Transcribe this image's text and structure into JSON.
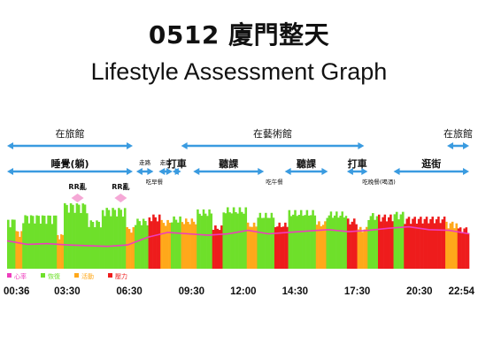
{
  "title_line1": "0512 廈門整天",
  "title_line2": "Lifestyle Assessment Graph",
  "colors": {
    "arrow": "#3a9be0",
    "recovery": "#6ee02a",
    "activity": "#ffa81a",
    "stress": "#ee1c1c",
    "heart_rate": "#ee3dbd",
    "rr_icon": "#f5a8d6"
  },
  "locations": [
    {
      "label": "在旅館",
      "from": "00:36",
      "to": "06:40"
    },
    {
      "label": "在藝術館",
      "from": "09:00",
      "to": "17:50"
    },
    {
      "label": "在旅館",
      "from": "21:50",
      "to": "22:54"
    }
  ],
  "activities": [
    {
      "label": "睡覺(躺)",
      "from": "00:36",
      "to": "06:40",
      "size": "big"
    },
    {
      "label": "走路",
      "from": "06:50",
      "to": "07:40",
      "size": "small"
    },
    {
      "label": "走路",
      "from": "07:55",
      "to": "08:35",
      "size": "small"
    },
    {
      "label": "打車",
      "from": "08:35",
      "to": "09:00",
      "size": "big"
    },
    {
      "label": "聽課",
      "from": "09:35",
      "to": "13:00",
      "size": "big"
    },
    {
      "label": "聽課",
      "from": "14:00",
      "to": "16:05",
      "size": "big"
    },
    {
      "label": "打車",
      "from": "17:00",
      "to": "18:00",
      "size": "big"
    },
    {
      "label": "逛街",
      "from": "19:15",
      "to": "22:54",
      "size": "big"
    }
  ],
  "meal_notes": [
    {
      "label": "吃早餐",
      "from": "07:05",
      "to": "08:20"
    },
    {
      "label": "吃午餐",
      "from": "13:05",
      "to": "13:55"
    },
    {
      "label": "吃晚餐(喝酒)",
      "from": "18:05",
      "to": "19:00"
    }
  ],
  "rr_markers": [
    {
      "label": "RR亂",
      "at": "04:00"
    },
    {
      "label": "RR亂",
      "at": "06:05"
    }
  ],
  "legend": [
    {
      "label": "心率",
      "color_key": "heart_rate"
    },
    {
      "label": "恢復",
      "color_key": "recovery"
    },
    {
      "label": "活動",
      "color_key": "activity"
    },
    {
      "label": "壓力",
      "color_key": "stress"
    }
  ],
  "chart_data": {
    "type": "bar",
    "x_start": "00:36",
    "x_end": "22:54",
    "x_ticks": [
      "00:36",
      "03:30",
      "06:30",
      "09:30",
      "12:00",
      "14:30",
      "17:30",
      "20:30",
      "22:54"
    ],
    "segments": [
      {
        "from": "00:36",
        "to": "01:00",
        "state": "recovery",
        "level": 0.72
      },
      {
        "from": "01:00",
        "to": "01:20",
        "state": "activity",
        "level": 0.55
      },
      {
        "from": "01:20",
        "to": "03:00",
        "state": "recovery",
        "level": 0.78
      },
      {
        "from": "03:00",
        "to": "03:20",
        "state": "activity",
        "level": 0.5
      },
      {
        "from": "03:20",
        "to": "04:30",
        "state": "recovery",
        "level": 0.95
      },
      {
        "from": "04:30",
        "to": "05:10",
        "state": "recovery",
        "level": 0.7
      },
      {
        "from": "05:10",
        "to": "06:20",
        "state": "recovery",
        "level": 0.88
      },
      {
        "from": "06:20",
        "to": "06:45",
        "state": "activity",
        "level": 0.6
      },
      {
        "from": "06:45",
        "to": "07:25",
        "state": "recovery",
        "level": 0.72
      },
      {
        "from": "07:25",
        "to": "08:00",
        "state": "stress",
        "level": 0.78
      },
      {
        "from": "08:00",
        "to": "08:30",
        "state": "activity",
        "level": 0.7
      },
      {
        "from": "08:30",
        "to": "09:00",
        "state": "recovery",
        "level": 0.75
      },
      {
        "from": "09:00",
        "to": "09:45",
        "state": "activity",
        "level": 0.72
      },
      {
        "from": "09:45",
        "to": "10:30",
        "state": "recovery",
        "level": 0.85
      },
      {
        "from": "10:30",
        "to": "11:00",
        "state": "stress",
        "level": 0.62
      },
      {
        "from": "11:00",
        "to": "12:10",
        "state": "recovery",
        "level": 0.88
      },
      {
        "from": "12:10",
        "to": "12:40",
        "state": "activity",
        "level": 0.66
      },
      {
        "from": "12:40",
        "to": "13:30",
        "state": "recovery",
        "level": 0.8
      },
      {
        "from": "13:30",
        "to": "14:10",
        "state": "stress",
        "level": 0.66
      },
      {
        "from": "14:10",
        "to": "15:30",
        "state": "recovery",
        "level": 0.84
      },
      {
        "from": "15:30",
        "to": "16:00",
        "state": "activity",
        "level": 0.68
      },
      {
        "from": "16:00",
        "to": "17:00",
        "state": "recovery",
        "level": 0.82
      },
      {
        "from": "17:00",
        "to": "17:30",
        "state": "stress",
        "level": 0.72
      },
      {
        "from": "17:30",
        "to": "18:00",
        "state": "activity",
        "level": 0.6
      },
      {
        "from": "18:00",
        "to": "18:30",
        "state": "recovery",
        "level": 0.8
      },
      {
        "from": "18:30",
        "to": "19:15",
        "state": "stress",
        "level": 0.78
      },
      {
        "from": "19:15",
        "to": "19:45",
        "state": "recovery",
        "level": 0.82
      },
      {
        "from": "19:45",
        "to": "21:45",
        "state": "stress",
        "level": 0.75
      },
      {
        "from": "21:45",
        "to": "22:20",
        "state": "activity",
        "level": 0.68
      },
      {
        "from": "22:20",
        "to": "22:54",
        "state": "stress",
        "level": 0.6
      }
    ],
    "heart_rate_level": [
      0.4,
      0.35,
      0.36,
      0.34,
      0.33,
      0.32,
      0.34,
      0.45,
      0.52,
      0.5,
      0.48,
      0.5,
      0.55,
      0.5,
      0.52,
      0.54,
      0.56,
      0.53,
      0.55,
      0.58,
      0.6,
      0.56,
      0.55,
      0.5
    ]
  }
}
